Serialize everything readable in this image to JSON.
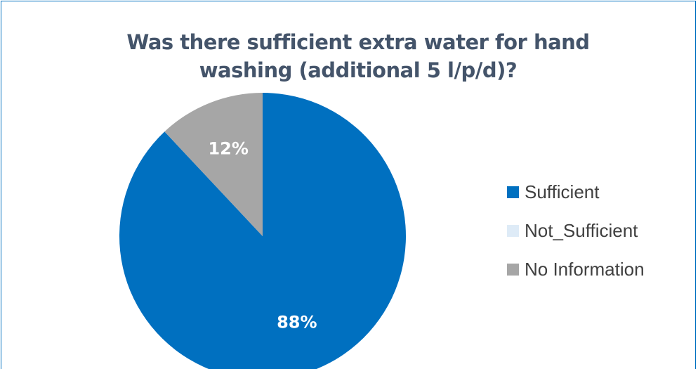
{
  "chart_data": {
    "type": "pie",
    "title": "Was there sufficient extra water for hand washing (additional 5 l/p/d)?",
    "categories": [
      "Sufficient",
      "Not_Sufficient",
      "No Information"
    ],
    "values": [
      88,
      0,
      12
    ],
    "unit": "%",
    "data_labels": [
      "88%",
      "",
      "12%"
    ],
    "colors": [
      "#0070c0",
      "#deebf7",
      "#a6a6a6"
    ],
    "legend_position": "right"
  }
}
